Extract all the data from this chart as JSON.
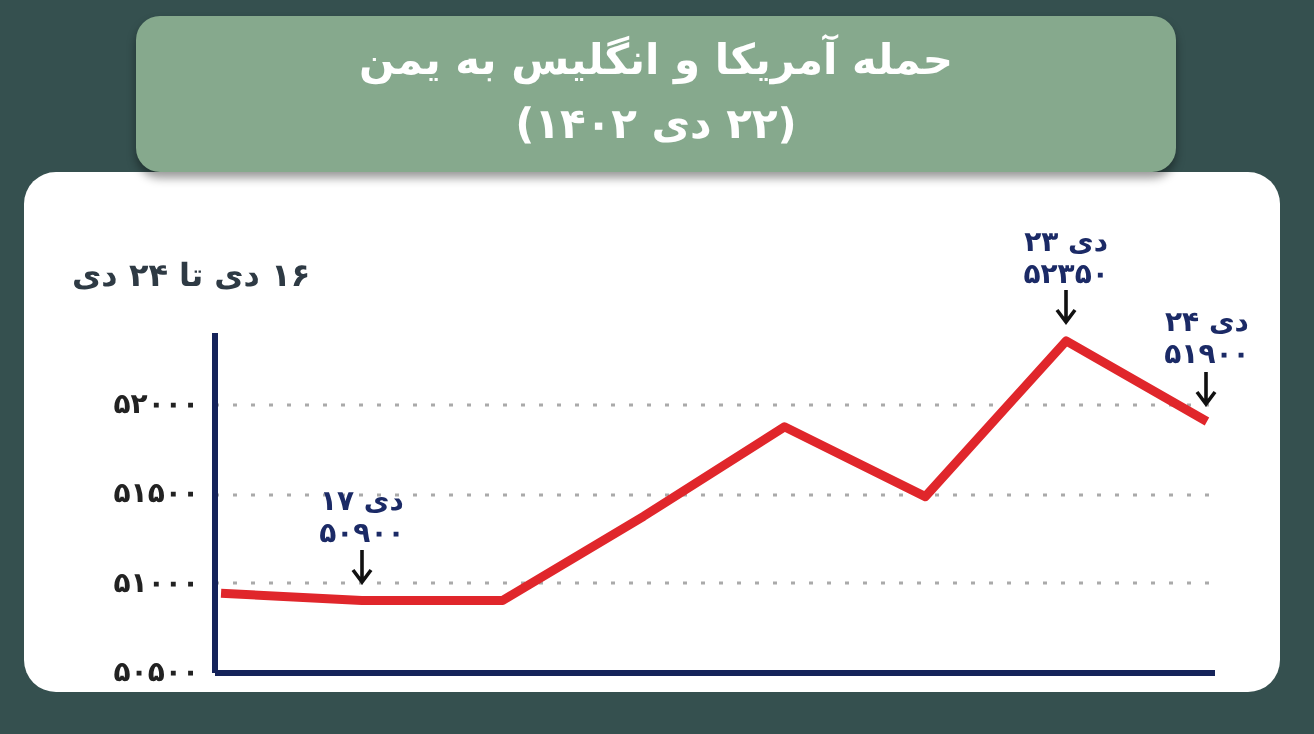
{
  "chart_data": {
    "type": "line",
    "title": "حمله آمریکا و انگلیس به یمن\n(۲۲ دی ۱۴۰۲)",
    "subtitle": "۱۶ دی تا ۲۴ دی",
    "categories": [
      null,
      null,
      null,
      null,
      null,
      null,
      null,
      null
    ],
    "values": [
      50940,
      50900,
      50900,
      51370,
      51870,
      51480,
      52350,
      51900
    ],
    "color": "#e0262b",
    "ylim": [
      50500,
      52400
    ],
    "yticks": [
      {
        "value": 50500,
        "label": "۵۰۵۰۰"
      },
      {
        "value": 51000,
        "label": "۵۱۰۰۰"
      },
      {
        "value": 51500,
        "label": "۵۱۵۰۰"
      },
      {
        "value": 52000,
        "label": "۵۲۰۰۰"
      }
    ],
    "grid": "y",
    "tick_labels": "y",
    "annotations": [
      {
        "text": "۱۷ دی\n۵۰۹۰۰",
        "y": 50900
      },
      {
        "text": "۲۳ دی\n۵۲۳۵۰",
        "y": 52350
      },
      {
        "text": "۲۴ دی\n۵۱۹۰۰",
        "y": 51900
      }
    ]
  }
}
